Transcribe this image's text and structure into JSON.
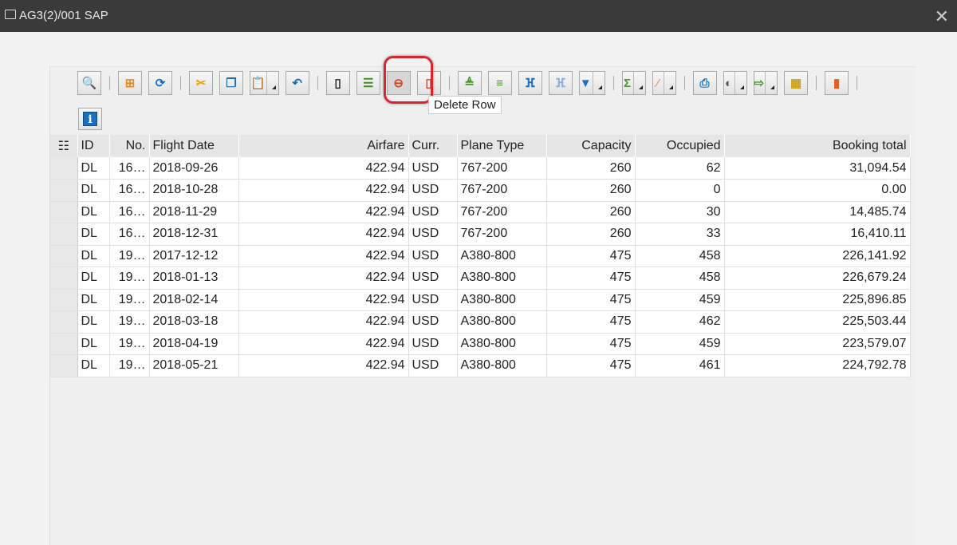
{
  "window": {
    "title": "AG3(2)/001 SAP",
    "close": "✕"
  },
  "toolbar": {
    "groups": [
      [
        {
          "name": "details",
          "icon": "🔍",
          "color": "#4a8a2a"
        }
      ],
      [
        {
          "name": "check",
          "icon": "⊞",
          "color": "#e58b1b"
        },
        {
          "name": "refresh",
          "icon": "⟳",
          "color": "#1d70b8"
        }
      ],
      [
        {
          "name": "cut",
          "icon": "✂",
          "color": "#e5a41b"
        },
        {
          "name": "copy",
          "icon": "❐",
          "color": "#1d70b8"
        },
        {
          "name": "paste",
          "icon": "📋",
          "color": "#1d70b8",
          "dropdown": true
        },
        {
          "name": "undo",
          "icon": "↶",
          "color": "#1d70b8"
        }
      ],
      [
        {
          "name": "append-row",
          "icon": "▯",
          "color": "#222"
        },
        {
          "name": "insert-row",
          "icon": "☰",
          "color": "#4a8a2a"
        },
        {
          "name": "delete-row",
          "icon": "⊖",
          "color": "#d04a2a",
          "active": true
        },
        {
          "name": "duplicate-row",
          "icon": "▯",
          "color": "#d04a2a"
        }
      ],
      [
        {
          "name": "sort-ascending",
          "icon": "≜",
          "color": "#4a9a2a"
        },
        {
          "name": "sort-descending",
          "icon": "≡",
          "color": "#4a9a2a"
        },
        {
          "name": "find",
          "icon": "ⴼ",
          "color": "#1d70b8"
        },
        {
          "name": "find-next",
          "icon": "ⴼ",
          "color": "#8ab0d8"
        },
        {
          "name": "filter",
          "icon": "▼",
          "color": "#1d70b8",
          "dropdown": true
        }
      ],
      [
        {
          "name": "sum",
          "icon": "Σ",
          "color": "#4a9a2a",
          "dropdown": true
        },
        {
          "name": "subtotals",
          "icon": "⁄",
          "color": "#e59a7a",
          "dropdown": true
        }
      ],
      [
        {
          "name": "print",
          "icon": "⎙",
          "color": "#1d70b8"
        },
        {
          "name": "views",
          "icon": "◐",
          "color": "#555",
          "dropdown": true
        },
        {
          "name": "export",
          "icon": "⇨",
          "color": "#4a9a2a",
          "dropdown": true
        },
        {
          "name": "layout",
          "icon": "▦",
          "color": "#c9a21b"
        }
      ],
      [
        {
          "name": "graphic",
          "icon": "▮",
          "color": "#e5601b"
        }
      ]
    ],
    "tooltip": "Delete Row",
    "info_icon": "i"
  },
  "table": {
    "columns": [
      "ID",
      "No.",
      "Flight Date",
      "Airfare",
      "Curr.",
      "Plane Type",
      "Capacity",
      "Occupied",
      "Booking total"
    ],
    "rows": [
      [
        "DL",
        "16…",
        "2018-09-26",
        "422.94",
        "USD",
        "767-200",
        "260",
        "62",
        "31,094.54"
      ],
      [
        "DL",
        "16…",
        "2018-10-28",
        "422.94",
        "USD",
        "767-200",
        "260",
        "0",
        "0.00"
      ],
      [
        "DL",
        "16…",
        "2018-11-29",
        "422.94",
        "USD",
        "767-200",
        "260",
        "30",
        "14,485.74"
      ],
      [
        "DL",
        "16…",
        "2018-12-31",
        "422.94",
        "USD",
        "767-200",
        "260",
        "33",
        "16,410.11"
      ],
      [
        "DL",
        "19…",
        "2017-12-12",
        "422.94",
        "USD",
        "A380-800",
        "475",
        "458",
        "226,141.92"
      ],
      [
        "DL",
        "19…",
        "2018-01-13",
        "422.94",
        "USD",
        "A380-800",
        "475",
        "458",
        "226,679.24"
      ],
      [
        "DL",
        "19…",
        "2018-02-14",
        "422.94",
        "USD",
        "A380-800",
        "475",
        "459",
        "225,896.85"
      ],
      [
        "DL",
        "19…",
        "2018-03-18",
        "422.94",
        "USD",
        "A380-800",
        "475",
        "462",
        "225,503.44"
      ],
      [
        "DL",
        "19…",
        "2018-04-19",
        "422.94",
        "USD",
        "A380-800",
        "475",
        "459",
        "223,579.07"
      ],
      [
        "DL",
        "19…",
        "2018-05-21",
        "422.94",
        "USD",
        "A380-800",
        "475",
        "461",
        "224,792.78"
      ]
    ]
  }
}
